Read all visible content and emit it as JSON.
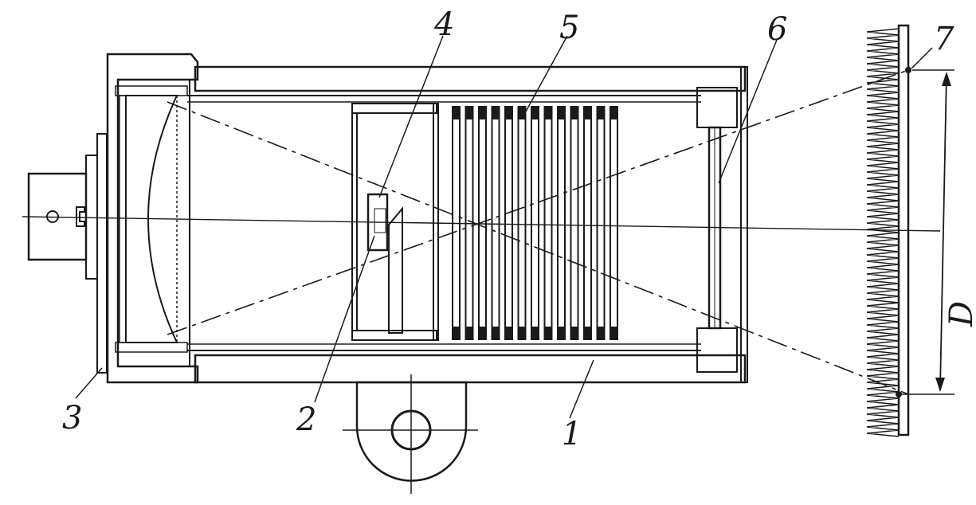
{
  "labels": {
    "l1": "1",
    "l2": "2",
    "l3": "3",
    "l4": "4",
    "l5": "5",
    "l6": "6",
    "l7": "7",
    "dim_D": "D"
  },
  "colors": {
    "ink": "#1a1a1a",
    "paper": "#ffffff",
    "lens": "#d9d9d9"
  }
}
